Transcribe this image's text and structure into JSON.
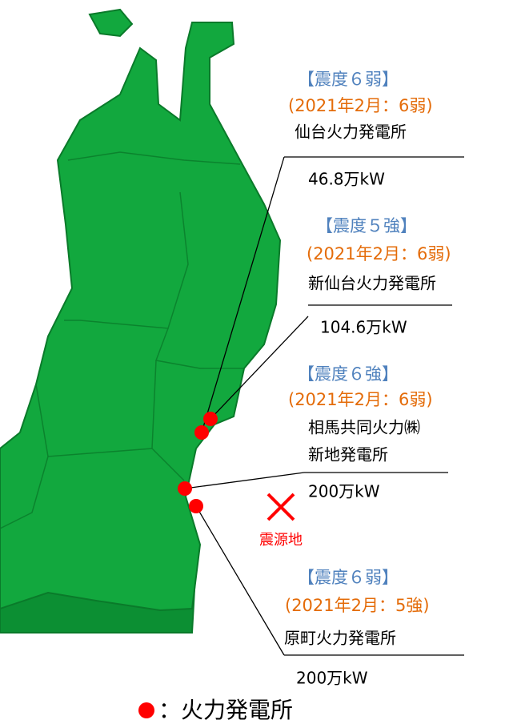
{
  "stations": [
    {
      "intensity": "【震度６弱】",
      "previous": "(2021年2月：6弱)",
      "name": [
        "仙台火力発電所"
      ],
      "capacity": "46.8万kW"
    },
    {
      "intensity": "【震度５強】",
      "previous": "(2021年2月：6弱)",
      "name": [
        "新仙台火力発電所"
      ],
      "capacity": "104.6万kW"
    },
    {
      "intensity": "【震度６強】",
      "previous": "(2021年2月：6弱)",
      "name": [
        "相馬共同火力㈱",
        "新地発電所"
      ],
      "capacity": "200万kW"
    },
    {
      "intensity": "【震度６弱】",
      "previous": "(2021年2月：5強)",
      "name": [
        "原町火力発電所"
      ],
      "capacity": "200万kW"
    }
  ],
  "epicenter": "震源地",
  "legend": "：火力発電所"
}
